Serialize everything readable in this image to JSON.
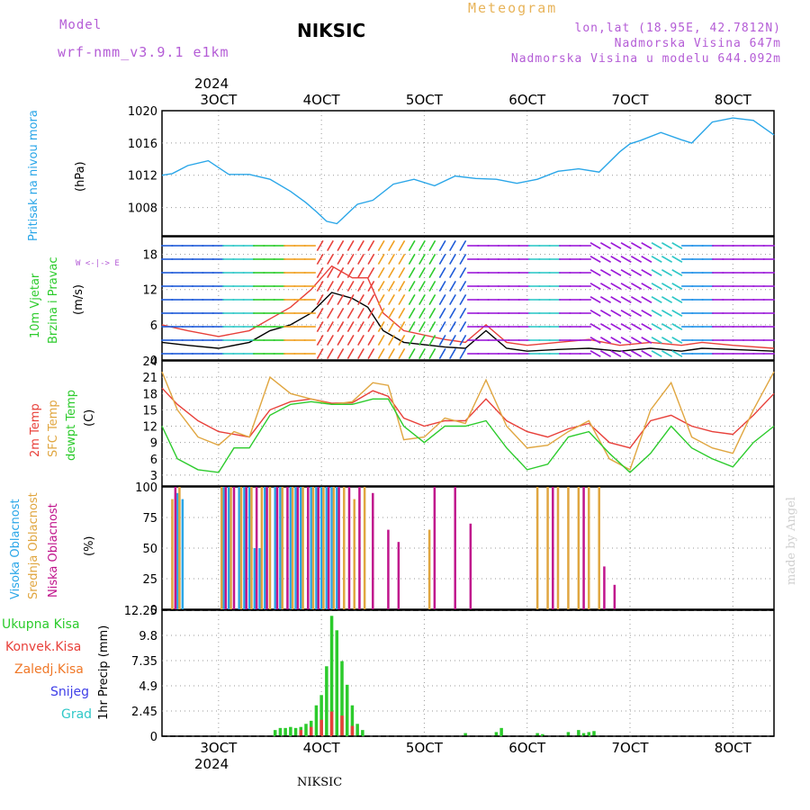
{
  "header": {
    "model_label": "Model",
    "model_name": "wrf-nmm_v3.9.1 e1km",
    "title": "NIKSIC",
    "meteogram": "Meteogram",
    "lonlat": "lon,lat (18.95E, 42.7812N)",
    "altitude": "Nadmorska Visina 647m",
    "model_altitude": "Nadmorska Visina u modelu 644.092m",
    "year_top": "2024",
    "year_bottom": "2024",
    "bottom_label": "NIKSIC",
    "credit": "made by Angel"
  },
  "colors": {
    "pressure": "#2aa6e8",
    "temp2m": "#e8403a",
    "sfc": "#e0a640",
    "dewpt": "#2ccb2c",
    "high_cloud": "#2aa6e8",
    "mid_cloud": "#e0a640",
    "low_cloud": "#c0148c",
    "precip": "#2ccb2c",
    "conv": "#e8403a",
    "freeze": "#f07828",
    "snow": "#4040e8",
    "grad": "#30c8c8",
    "purple": "#b45cd6"
  },
  "panels": {
    "pressure": {
      "label": "Pritisak na nivou mora",
      "unit": "(hPa)"
    },
    "wind": {
      "label1": "10m Vjetar",
      "label2": "Brzina i Pravac",
      "unit": "(m/s)",
      "compass": "W <-|-> E"
    },
    "temp": {
      "label1": "2m Temp",
      "label2": "SFC Temp",
      "label3": "dewpt Temp",
      "unit": "(C)"
    },
    "cloud": {
      "label1": "Visoka Oblacnost",
      "label2": "Srednja Oblacnost",
      "label3": "Niska Oblacnost",
      "unit": "(%)"
    },
    "precip": {
      "unit": "1hr Precip (mm)",
      "legend": [
        "Ukupna Kisa",
        "Konvek.Kisa",
        "Zaledj.Kisa",
        "Snijeg",
        "Grad"
      ]
    }
  },
  "chart_data": [
    {
      "type": "line",
      "panel": "pressure",
      "x_unit": "days from 3 OCT 2024 00h",
      "xlim": [
        -0.55,
        5.4
      ],
      "x_ticks": [
        "3OCT",
        "4OCT",
        "5OCT",
        "6OCT",
        "7OCT",
        "8OCT"
      ],
      "ylim": [
        1004.5,
        1020
      ],
      "y_ticks": [
        "1008",
        "1012",
        "1016",
        "1020"
      ],
      "series": [
        {
          "color": "pressure",
          "x": [
            -0.55,
            -0.45,
            -0.3,
            -0.1,
            0.1,
            0.3,
            0.5,
            0.7,
            0.85,
            0.95,
            1.05,
            1.15,
            1.25,
            1.35,
            1.5,
            1.7,
            1.9,
            2.1,
            2.3,
            2.5,
            2.7,
            2.9,
            3.1,
            3.3,
            3.5,
            3.7,
            3.9,
            4.0,
            4.1,
            4.3,
            4.5,
            4.6,
            4.8,
            5.0,
            5.2,
            5.4
          ],
          "y": [
            1012,
            1012.2,
            1013.2,
            1013.8,
            1012.1,
            1012.1,
            1011.5,
            1010,
            1008.6,
            1007.5,
            1006.3,
            1006,
            1007.2,
            1008.4,
            1008.9,
            1010.9,
            1011.5,
            1010.7,
            1011.9,
            1011.6,
            1011.5,
            1011,
            1011.5,
            1012.5,
            1012.8,
            1012.4,
            1014.9,
            1015.9,
            1016.3,
            1017.3,
            1016.4,
            1016,
            1018.6,
            1019.1,
            1018.8,
            1017
          ]
        }
      ]
    },
    {
      "type": "line",
      "panel": "wind",
      "xlim": [
        -0.55,
        5.4
      ],
      "ylim": [
        0,
        21
      ],
      "y_ticks": [
        "0",
        "6",
        "12",
        "18"
      ],
      "series": [
        {
          "name_hint": "speed",
          "color": "#000000",
          "x": [
            -0.55,
            -0.3,
            0,
            0.3,
            0.5,
            0.7,
            0.9,
            1.1,
            1.3,
            1.45,
            1.6,
            1.8,
            2.2,
            2.4,
            2.6,
            2.8,
            3.0,
            3.3,
            3.6,
            3.9,
            4.2,
            4.5,
            4.7,
            5.0,
            5.4
          ],
          "y": [
            3,
            2.5,
            2,
            3,
            5,
            6,
            8,
            11.5,
            10.5,
            9,
            5,
            3,
            2.2,
            2,
            5,
            2,
            1.5,
            1.8,
            2,
            1.5,
            2,
            1.5,
            2,
            1.8,
            1.5
          ]
        },
        {
          "name_hint": "gust",
          "color": "#e8403a",
          "x": [
            -0.55,
            -0.3,
            0,
            0.3,
            0.5,
            0.7,
            0.9,
            1.1,
            1.3,
            1.45,
            1.6,
            1.8,
            2.2,
            2.4,
            2.6,
            2.8,
            3.0,
            3.3,
            3.6,
            3.9,
            4.2,
            4.5,
            4.7,
            5.0,
            5.4
          ],
          "y": [
            6,
            5,
            4,
            5,
            7,
            9,
            12,
            16,
            14,
            14,
            8,
            5,
            3.5,
            3,
            6,
            3,
            2.5,
            3,
            3.5,
            2.5,
            3,
            2.5,
            3,
            2.5,
            2
          ]
        }
      ]
    },
    {
      "type": "line",
      "panel": "temp",
      "xlim": [
        -0.55,
        5.4
      ],
      "ylim": [
        1,
        24
      ],
      "y_ticks": [
        "3",
        "6",
        "9",
        "12",
        "15",
        "18",
        "21",
        "24"
      ],
      "series": [
        {
          "color": "temp2m",
          "x": [
            -0.55,
            -0.4,
            -0.2,
            0,
            0.15,
            0.3,
            0.5,
            0.7,
            0.9,
            1.1,
            1.3,
            1.5,
            1.65,
            1.8,
            2.0,
            2.2,
            2.4,
            2.6,
            2.8,
            3.0,
            3.2,
            3.4,
            3.6,
            3.8,
            4.0,
            4.2,
            4.4,
            4.6,
            4.8,
            5.0,
            5.2,
            5.4
          ],
          "y": [
            19,
            16,
            13,
            11,
            10.5,
            10,
            15,
            16.5,
            17,
            16.2,
            16.3,
            18.5,
            17.5,
            13.5,
            12,
            13,
            13,
            17,
            13,
            11,
            10,
            11.5,
            12.5,
            9,
            8,
            13,
            14,
            12,
            11,
            10.5,
            14,
            18
          ]
        },
        {
          "color": "sfc",
          "x": [
            -0.55,
            -0.4,
            -0.2,
            0,
            0.15,
            0.3,
            0.5,
            0.7,
            0.9,
            1.1,
            1.3,
            1.5,
            1.65,
            1.8,
            2.0,
            2.2,
            2.4,
            2.6,
            2.8,
            3.0,
            3.2,
            3.4,
            3.6,
            3.8,
            4.0,
            4.2,
            4.4,
            4.6,
            4.8,
            5.0,
            5.2,
            5.4
          ],
          "y": [
            22,
            15,
            10,
            8.5,
            11,
            10,
            21,
            18,
            17,
            16,
            16.5,
            20,
            19.5,
            9.5,
            10,
            13.5,
            12.5,
            20.5,
            12,
            8,
            8.5,
            11,
            13,
            6,
            4,
            15,
            20,
            10,
            8,
            7,
            15,
            22
          ]
        },
        {
          "color": "dewpt",
          "x": [
            -0.55,
            -0.4,
            -0.2,
            0,
            0.15,
            0.3,
            0.5,
            0.7,
            0.9,
            1.1,
            1.3,
            1.5,
            1.65,
            1.8,
            2.0,
            2.2,
            2.4,
            2.6,
            2.8,
            3.0,
            3.2,
            3.4,
            3.6,
            3.8,
            4.0,
            4.2,
            4.4,
            4.6,
            4.8,
            5.0,
            5.2,
            5.4
          ],
          "y": [
            12,
            6,
            4,
            3.5,
            8,
            8,
            14,
            16,
            16.5,
            16,
            16,
            17,
            17,
            12,
            9,
            12,
            12,
            13,
            8,
            4,
            5,
            10,
            11,
            7,
            3.5,
            7,
            12,
            8,
            6,
            4.5,
            9,
            12
          ]
        }
      ]
    },
    {
      "type": "bar",
      "panel": "cloud",
      "xlim": [
        -0.55,
        5.4
      ],
      "ylim": [
        0,
        100
      ],
      "y_ticks": [
        "0",
        "25",
        "50",
        "75",
        "100"
      ],
      "series": [
        {
          "color": "high_cloud",
          "x": [
            -0.4,
            -0.35,
            0.05,
            0.1,
            0.2,
            0.25,
            0.3,
            0.35,
            0.4,
            0.45,
            0.55,
            0.6,
            0.7,
            0.75,
            0.8,
            0.9,
            0.95,
            1.0,
            1.05,
            1.1,
            1.15
          ],
          "y": [
            95,
            90,
            100,
            100,
            100,
            100,
            100,
            50,
            50,
            100,
            100,
            100,
            100,
            100,
            100,
            100,
            100,
            100,
            100,
            100,
            100
          ]
        },
        {
          "color": "mid_cloud",
          "x": [
            -0.45,
            -0.38,
            0.03,
            0.12,
            0.22,
            0.32,
            0.42,
            0.5,
            0.62,
            0.72,
            0.82,
            0.92,
            1.02,
            1.12,
            1.22,
            1.32,
            1.42,
            2.05,
            3.1,
            3.2,
            3.3,
            3.4,
            3.5,
            3.6,
            3.7
          ],
          "y": [
            90,
            100,
            100,
            100,
            100,
            100,
            100,
            100,
            100,
            100,
            100,
            100,
            100,
            100,
            100,
            90,
            100,
            65,
            100,
            100,
            100,
            100,
            100,
            100,
            100
          ]
        },
        {
          "color": "low_cloud",
          "x": [
            -0.42,
            0.07,
            0.15,
            0.27,
            0.37,
            0.47,
            0.57,
            0.67,
            0.77,
            0.87,
            0.97,
            1.07,
            1.17,
            1.27,
            1.37,
            1.5,
            1.65,
            1.75,
            2.1,
            2.3,
            2.45,
            3.25,
            3.55,
            3.75,
            3.85
          ],
          "y": [
            100,
            100,
            100,
            100,
            100,
            100,
            100,
            100,
            100,
            100,
            100,
            100,
            100,
            100,
            100,
            95,
            65,
            55,
            100,
            100,
            70,
            100,
            100,
            35,
            20
          ]
        }
      ]
    },
    {
      "type": "bar",
      "panel": "precip",
      "xlim": [
        -0.55,
        5.4
      ],
      "ylim": [
        0,
        12.25
      ],
      "y_ticks": [
        "0",
        "2.45",
        "4.9",
        "7.35",
        "9.8",
        "12.25"
      ],
      "series": [
        {
          "color": "precip",
          "x": [
            0.55,
            0.6,
            0.65,
            0.7,
            0.75,
            0.8,
            0.85,
            0.9,
            0.95,
            1.0,
            1.05,
            1.1,
            1.15,
            1.2,
            1.25,
            1.3,
            1.35,
            1.4,
            2.4,
            2.7,
            2.75,
            3.1,
            3.15,
            3.4,
            3.5,
            3.55,
            3.6,
            3.65
          ],
          "y": [
            0.6,
            0.8,
            0.8,
            0.9,
            0.8,
            0.9,
            1.2,
            1.5,
            3.0,
            4.0,
            6.8,
            11.7,
            10.3,
            7.3,
            5.0,
            3.0,
            1.2,
            0.6,
            0.3,
            0.4,
            0.8,
            0.3,
            0.2,
            0.4,
            0.6,
            0.3,
            0.4,
            0.5
          ]
        },
        {
          "color": "conv",
          "x": [
            0.8,
            0.9,
            1.0,
            1.1,
            1.2,
            1.3
          ],
          "y": [
            0.6,
            0.9,
            1.6,
            2.4,
            2.0,
            1.0
          ]
        }
      ]
    }
  ]
}
